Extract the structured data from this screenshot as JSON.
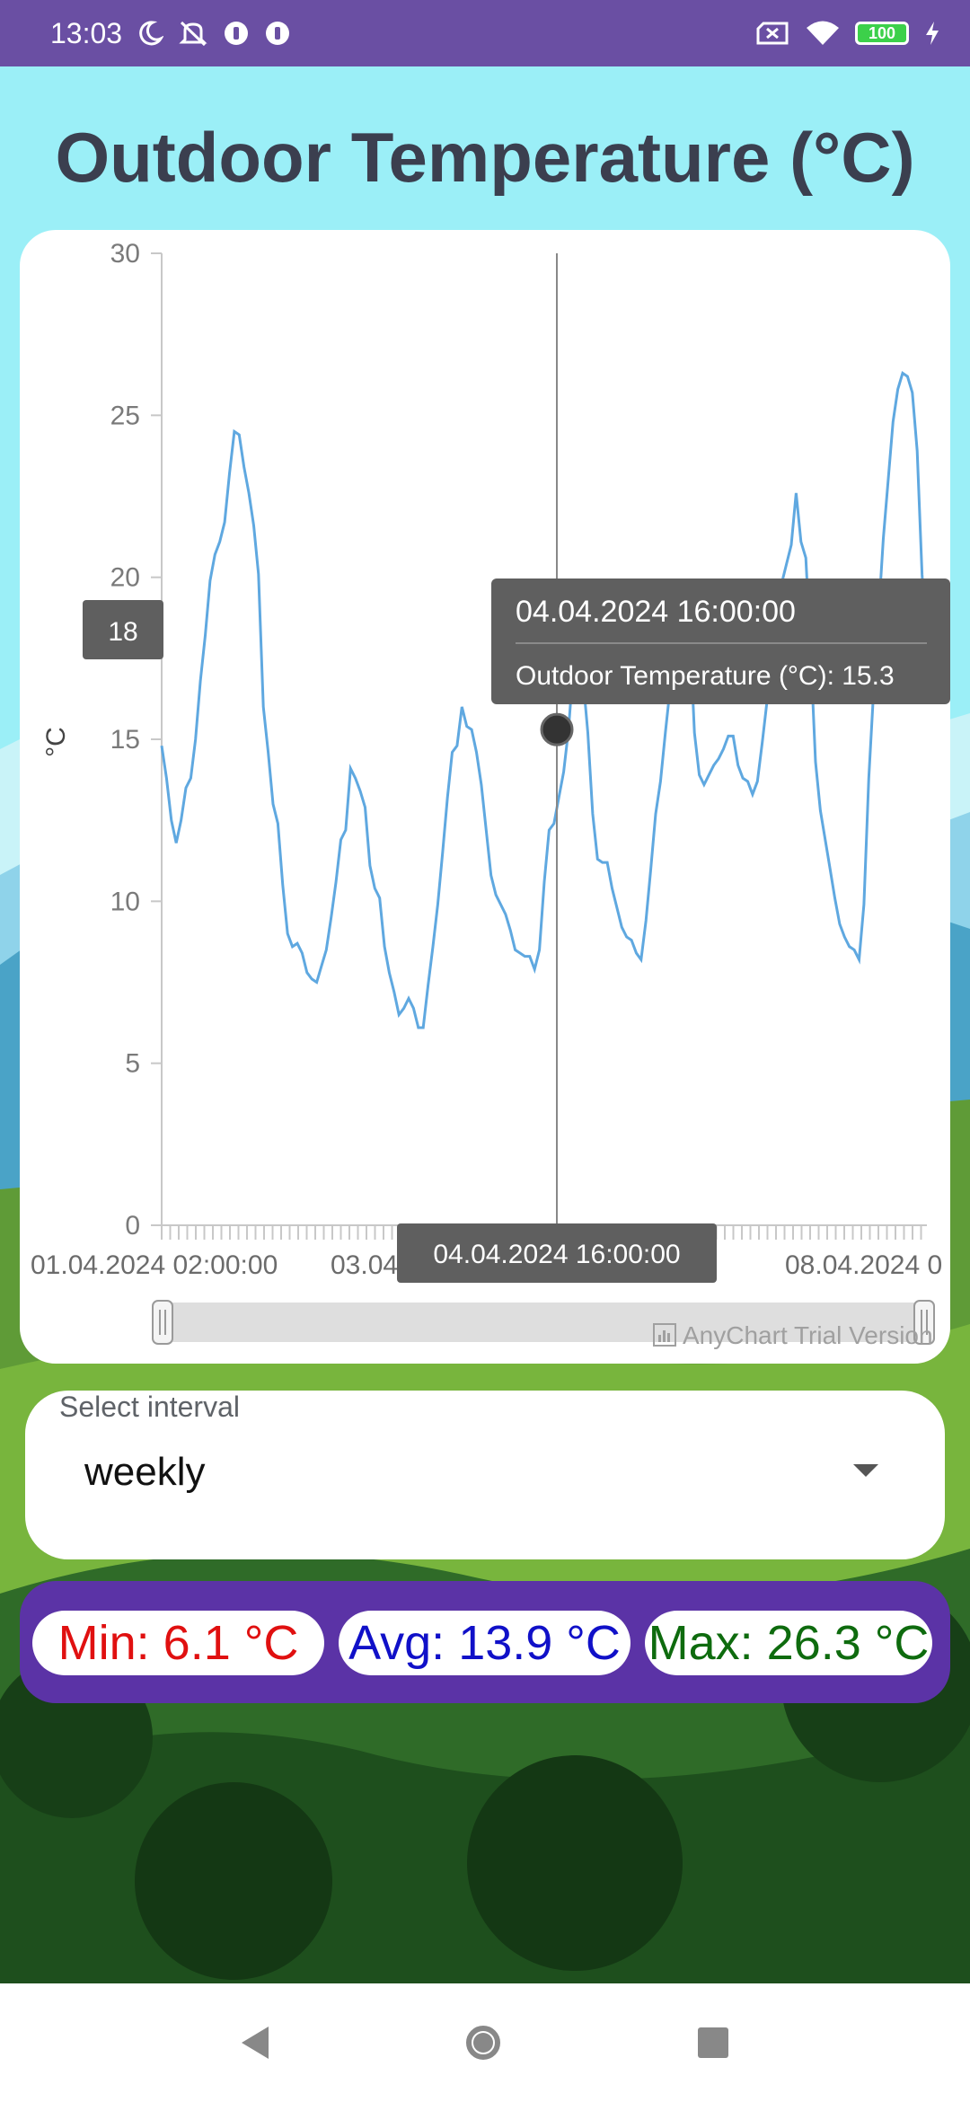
{
  "status_bar": {
    "time": "13:03",
    "battery": "100",
    "icons_left": [
      "moon-icon",
      "mute-icon",
      "app-icon",
      "app-icon"
    ],
    "icons_right": [
      "sim-off-icon",
      "wifi-icon",
      "battery-icon",
      "charging-icon"
    ]
  },
  "title": "Outdoor Temperature (°C)",
  "chart": {
    "crosshair_y_label": "18",
    "crosshair_x_label": "04.04.2024 16:00:00",
    "tooltip_title": "04.04.2024 16:00:00",
    "tooltip_body": "Outdoor Temperature (°C): 15.3",
    "watermark": "AnyChart Trial Version"
  },
  "chart_data": {
    "type": "line",
    "title": "",
    "xlabel": "",
    "ylabel": "°C",
    "ylim": [
      0,
      30
    ],
    "yticks": [
      "0",
      "5",
      "10",
      "15",
      "20",
      "25",
      "30"
    ],
    "xtick_labels": [
      "01.04.2024 02:00:00",
      "03.04.2024 20:00:00",
      "08.04.2024 0"
    ],
    "grid": false,
    "series": [
      {
        "color": "#5fa8e0",
        "values": [
          14.8,
          13.8,
          12.5,
          11.8,
          12.5,
          13.5,
          13.8,
          15.0,
          16.8,
          18.2,
          19.9,
          20.7,
          21.1,
          21.7,
          23.2,
          24.5,
          24.4,
          23.4,
          22.6,
          21.6,
          20.1,
          16.0,
          14.6,
          13.0,
          12.4,
          10.5,
          9.0,
          8.6,
          8.7,
          8.4,
          7.8,
          7.6,
          7.5,
          8.0,
          8.5,
          9.5,
          10.6,
          11.9,
          12.2,
          14.1,
          13.8,
          13.4,
          12.9,
          11.1,
          10.4,
          10.1,
          8.6,
          7.8,
          7.2,
          6.5,
          6.7,
          7.0,
          6.7,
          6.1,
          6.1,
          7.4,
          8.6,
          9.9,
          11.5,
          13.2,
          14.6,
          14.8,
          16.0,
          15.4,
          15.3,
          14.6,
          13.6,
          12.2,
          10.8,
          10.2,
          9.9,
          9.6,
          9.1,
          8.5,
          8.4,
          8.3,
          8.3,
          7.9,
          8.5,
          10.6,
          12.2,
          12.4,
          13.2,
          14.0,
          15.3,
          17.3,
          17.5,
          16.9,
          15.2,
          12.7,
          11.3,
          11.2,
          11.2,
          10.4,
          9.8,
          9.2,
          8.9,
          8.8,
          8.4,
          8.2,
          9.4,
          11.0,
          12.7,
          13.7,
          15.2,
          16.6,
          18.0,
          18.6,
          19.0,
          18.5,
          15.2,
          13.9,
          13.6,
          13.9,
          14.2,
          14.4,
          14.7,
          15.1,
          15.1,
          14.2,
          13.8,
          13.7,
          13.3,
          13.7,
          14.9,
          16.2,
          17.4,
          18.9,
          19.8,
          20.4,
          21.0,
          22.6,
          21.1,
          20.6,
          17.7,
          14.3,
          12.8,
          11.9,
          11.0,
          10.1,
          9.3,
          8.9,
          8.6,
          8.5,
          8.2,
          9.9,
          13.8,
          16.5,
          18.8,
          21.2,
          23.0,
          24.8,
          25.8,
          26.3,
          26.2,
          25.7,
          23.9,
          20.1,
          17.7
        ]
      }
    ],
    "highlight": {
      "x": "04.04.2024 16:00:00",
      "value": 15.3
    }
  },
  "interval": {
    "label": "Select interval",
    "value": "weekly"
  },
  "stats": {
    "min": "Min: 6.1 °C",
    "avg": "Avg: 13.9 °C",
    "max": "Max: 26.3 °C",
    "min_color": "#e01010",
    "avg_color": "#1010c8",
    "max_color": "#0e6b0e"
  }
}
